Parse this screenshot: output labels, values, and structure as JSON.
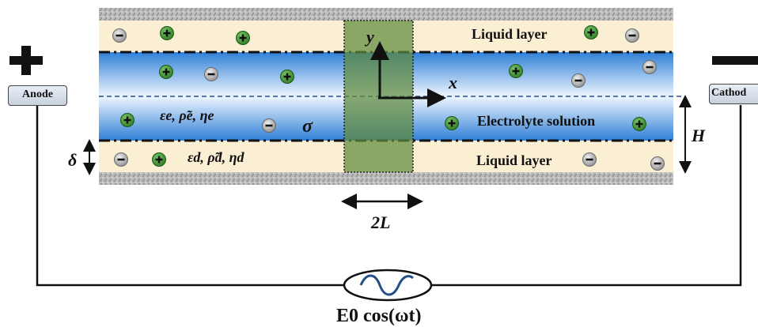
{
  "labels": {
    "anode": "Anode",
    "cathode": "Cathod",
    "liquid_layer_top": "Liquid layer",
    "liquid_layer_bottom": "Liquid layer",
    "electrolyte": "Electrolyte solution",
    "y_axis": "y",
    "x_axis": "x",
    "sigma": "σ",
    "h": "H",
    "delta": "δ",
    "two_l": "2L",
    "electrolyte_props": "εe, ρ̃e, ηe",
    "layer_props": "εd, ρ̃d, ηd",
    "source": "E0 cos(ωt)"
  },
  "colors": {
    "liquid_layer": "#fbefd3",
    "electrolyte_edge": "#2f7fd6",
    "electrolyte_center": "#eef6ff",
    "wall": "#b8b8b8",
    "region": "#5f8a3c",
    "positive_ion": "#3f8f32",
    "negative_ion": "#9a9a9a"
  },
  "icons": {
    "positive_ion": "plus-ion-icon",
    "negative_ion": "minus-ion-icon",
    "ac_source": "ac-source-icon"
  }
}
